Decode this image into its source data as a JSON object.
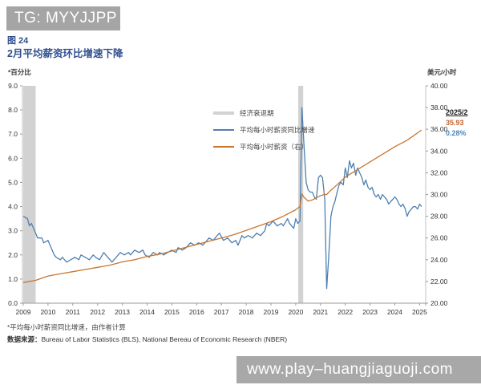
{
  "header": {
    "telegram_tag": "TG: MYYJJPP"
  },
  "figure": {
    "number": "图 24",
    "title": "2月平均薪资环比增速下降",
    "footnote": "*平均每小时薪资同比增速，由作者计算",
    "source_label": "数据来源：",
    "source_text": "Bureau of Labor Statistics (BLS), National Bereau of Economic Research (NBER)"
  },
  "annotation": {
    "date": "2025/2",
    "wage_value": "35.93",
    "growth_value": "0.28%"
  },
  "watermark": {
    "url": "www.play–huangjiaguoji.com"
  },
  "colors": {
    "title_blue": "#31508f",
    "yoy_line": "#4e80b0",
    "wage_line": "#c8762f",
    "recession_band": "#d2d2d2",
    "wage_value_text": "#c4632d",
    "growth_value_text": "#4a88bb",
    "header_bar": "#a5a5a5",
    "watermark_bar": "#a8a8a8"
  },
  "chart_data": {
    "type": "line",
    "title": "2月平均薪资环比增速下降",
    "left_axis": {
      "label": "*百分比",
      "range": [
        0,
        9
      ],
      "ticks": [
        "9.0",
        "8.0",
        "7.0",
        "6.0",
        "5.0",
        "4.0",
        "3.0",
        "2.0",
        "1.0",
        "0.0"
      ]
    },
    "right_axis": {
      "label": "美元/小时",
      "range": [
        20,
        40
      ],
      "ticks": [
        "40.00",
        "38.00",
        "36.00",
        "34.00",
        "32.00",
        "30.00",
        "28.00",
        "26.00",
        "24.00",
        "22.00",
        "20.00"
      ]
    },
    "x_ticks": [
      "2009",
      "2010",
      "2011",
      "2012",
      "2013",
      "2014",
      "2015",
      "2016",
      "2017",
      "2018",
      "2019",
      "2020",
      "2021",
      "2022",
      "2023",
      "2024",
      "2025"
    ],
    "x_range": [
      2009,
      2025.27
    ],
    "legend": [
      {
        "label": "经济衰退期",
        "color": "#d2d2d2",
        "type": "band"
      },
      {
        "label": "平均每小时薪资同比增速",
        "color": "#4e80b0",
        "type": "line",
        "axis": "left"
      },
      {
        "label": "平均每小时薪资（右）",
        "color": "#c8762f",
        "type": "line",
        "axis": "right"
      }
    ],
    "recession_bands": [
      [
        2009.0,
        2009.5
      ],
      [
        2020.1,
        2020.3
      ]
    ],
    "series": [
      {
        "name": "平均每小时薪资同比增速",
        "axis": "left",
        "color": "#4e80b0",
        "points": [
          [
            2009.0,
            3.6
          ],
          [
            2009.17,
            3.5
          ],
          [
            2009.25,
            3.2
          ],
          [
            2009.33,
            3.3
          ],
          [
            2009.5,
            2.9
          ],
          [
            2009.58,
            2.7
          ],
          [
            2009.75,
            2.7
          ],
          [
            2009.83,
            2.5
          ],
          [
            2010.0,
            2.6
          ],
          [
            2010.08,
            2.4
          ],
          [
            2010.25,
            2.0
          ],
          [
            2010.33,
            1.9
          ],
          [
            2010.5,
            1.8
          ],
          [
            2010.58,
            1.9
          ],
          [
            2010.75,
            1.7
          ],
          [
            2010.92,
            1.8
          ],
          [
            2011.08,
            1.9
          ],
          [
            2011.25,
            1.8
          ],
          [
            2011.33,
            2.0
          ],
          [
            2011.5,
            1.9
          ],
          [
            2011.67,
            1.8
          ],
          [
            2011.83,
            2.0
          ],
          [
            2011.92,
            1.9
          ],
          [
            2012.08,
            1.8
          ],
          [
            2012.25,
            2.1
          ],
          [
            2012.33,
            2.0
          ],
          [
            2012.5,
            1.8
          ],
          [
            2012.58,
            1.7
          ],
          [
            2012.75,
            1.9
          ],
          [
            2012.92,
            2.1
          ],
          [
            2013.08,
            2.0
          ],
          [
            2013.25,
            2.1
          ],
          [
            2013.33,
            2.0
          ],
          [
            2013.5,
            2.2
          ],
          [
            2013.67,
            2.1
          ],
          [
            2013.83,
            2.2
          ],
          [
            2013.92,
            2.0
          ],
          [
            2014.08,
            1.9
          ],
          [
            2014.25,
            2.1
          ],
          [
            2014.42,
            2.0
          ],
          [
            2014.5,
            2.1
          ],
          [
            2014.67,
            2.0
          ],
          [
            2014.83,
            2.1
          ],
          [
            2015.0,
            2.2
          ],
          [
            2015.17,
            2.1
          ],
          [
            2015.25,
            2.3
          ],
          [
            2015.42,
            2.2
          ],
          [
            2015.58,
            2.3
          ],
          [
            2015.75,
            2.5
          ],
          [
            2015.92,
            2.4
          ],
          [
            2016.08,
            2.5
          ],
          [
            2016.25,
            2.4
          ],
          [
            2016.42,
            2.6
          ],
          [
            2016.5,
            2.7
          ],
          [
            2016.67,
            2.6
          ],
          [
            2016.83,
            2.8
          ],
          [
            2016.92,
            2.9
          ],
          [
            2017.08,
            2.6
          ],
          [
            2017.25,
            2.7
          ],
          [
            2017.42,
            2.5
          ],
          [
            2017.58,
            2.6
          ],
          [
            2017.67,
            2.4
          ],
          [
            2017.83,
            2.8
          ],
          [
            2017.92,
            2.7
          ],
          [
            2018.08,
            2.8
          ],
          [
            2018.25,
            2.7
          ],
          [
            2018.42,
            2.9
          ],
          [
            2018.58,
            2.8
          ],
          [
            2018.75,
            3.0
          ],
          [
            2018.83,
            3.3
          ],
          [
            2018.92,
            3.2
          ],
          [
            2019.08,
            3.4
          ],
          [
            2019.25,
            3.2
          ],
          [
            2019.42,
            3.3
          ],
          [
            2019.5,
            3.2
          ],
          [
            2019.67,
            3.5
          ],
          [
            2019.75,
            3.3
          ],
          [
            2019.92,
            3.1
          ],
          [
            2020.0,
            3.5
          ],
          [
            2020.08,
            3.3
          ],
          [
            2020.17,
            3.4
          ],
          [
            2020.25,
            8.1
          ],
          [
            2020.33,
            6.6
          ],
          [
            2020.42,
            5.0
          ],
          [
            2020.5,
            4.7
          ],
          [
            2020.58,
            4.6
          ],
          [
            2020.67,
            4.6
          ],
          [
            2020.75,
            4.4
          ],
          [
            2020.83,
            4.3
          ],
          [
            2020.92,
            5.2
          ],
          [
            2021.0,
            5.3
          ],
          [
            2021.08,
            5.2
          ],
          [
            2021.17,
            4.3
          ],
          [
            2021.25,
            0.6
          ],
          [
            2021.33,
            1.9
          ],
          [
            2021.42,
            3.6
          ],
          [
            2021.5,
            4.0
          ],
          [
            2021.58,
            4.2
          ],
          [
            2021.67,
            4.6
          ],
          [
            2021.75,
            4.9
          ],
          [
            2021.83,
            5.0
          ],
          [
            2021.92,
            4.9
          ],
          [
            2022.0,
            5.6
          ],
          [
            2022.08,
            5.2
          ],
          [
            2022.17,
            5.9
          ],
          [
            2022.25,
            5.6
          ],
          [
            2022.33,
            5.8
          ],
          [
            2022.42,
            5.3
          ],
          [
            2022.5,
            5.6
          ],
          [
            2022.58,
            5.4
          ],
          [
            2022.67,
            5.2
          ],
          [
            2022.75,
            4.9
          ],
          [
            2022.83,
            5.1
          ],
          [
            2022.92,
            4.8
          ],
          [
            2023.0,
            4.7
          ],
          [
            2023.08,
            4.8
          ],
          [
            2023.17,
            4.5
          ],
          [
            2023.25,
            4.4
          ],
          [
            2023.33,
            4.5
          ],
          [
            2023.42,
            4.3
          ],
          [
            2023.5,
            4.5
          ],
          [
            2023.58,
            4.4
          ],
          [
            2023.67,
            4.3
          ],
          [
            2023.75,
            4.1
          ],
          [
            2023.83,
            4.2
          ],
          [
            2023.92,
            4.3
          ],
          [
            2024.0,
            4.4
          ],
          [
            2024.08,
            4.3
          ],
          [
            2024.17,
            4.1
          ],
          [
            2024.25,
            4.0
          ],
          [
            2024.33,
            4.1
          ],
          [
            2024.42,
            3.9
          ],
          [
            2024.5,
            3.6
          ],
          [
            2024.58,
            3.8
          ],
          [
            2024.67,
            3.9
          ],
          [
            2024.75,
            4.0
          ],
          [
            2024.83,
            4.0
          ],
          [
            2024.92,
            3.9
          ],
          [
            2025.0,
            4.1
          ],
          [
            2025.08,
            4.0
          ]
        ]
      },
      {
        "name": "平均每小时薪资（右）",
        "axis": "right",
        "color": "#c8762f",
        "points": [
          [
            2009.0,
            21.9
          ],
          [
            2009.5,
            22.1
          ],
          [
            2010.0,
            22.5
          ],
          [
            2010.5,
            22.7
          ],
          [
            2011.0,
            22.9
          ],
          [
            2011.5,
            23.1
          ],
          [
            2012.0,
            23.3
          ],
          [
            2012.5,
            23.5
          ],
          [
            2013.0,
            23.8
          ],
          [
            2013.5,
            24.0
          ],
          [
            2014.0,
            24.3
          ],
          [
            2014.5,
            24.5
          ],
          [
            2015.0,
            24.8
          ],
          [
            2015.5,
            25.1
          ],
          [
            2016.0,
            25.4
          ],
          [
            2016.5,
            25.7
          ],
          [
            2017.0,
            26.0
          ],
          [
            2017.5,
            26.3
          ],
          [
            2018.0,
            26.7
          ],
          [
            2018.5,
            27.1
          ],
          [
            2019.0,
            27.5
          ],
          [
            2019.5,
            28.0
          ],
          [
            2020.0,
            28.6
          ],
          [
            2020.17,
            28.9
          ],
          [
            2020.25,
            30.05
          ],
          [
            2020.33,
            29.75
          ],
          [
            2020.5,
            29.4
          ],
          [
            2020.67,
            29.5
          ],
          [
            2020.83,
            29.7
          ],
          [
            2021.0,
            29.9
          ],
          [
            2021.17,
            30.0
          ],
          [
            2021.25,
            30.0
          ],
          [
            2021.42,
            30.4
          ],
          [
            2021.67,
            30.9
          ],
          [
            2022.0,
            31.6
          ],
          [
            2022.5,
            32.3
          ],
          [
            2023.0,
            33.0
          ],
          [
            2023.5,
            33.7
          ],
          [
            2024.0,
            34.4
          ],
          [
            2024.5,
            35.0
          ],
          [
            2025.0,
            35.8
          ],
          [
            2025.08,
            35.93
          ]
        ]
      }
    ],
    "last_point": {
      "date": "2025/2",
      "wage": 35.93,
      "mom_growth_pct": 0.28,
      "yoy_growth_pct": 4.0
    }
  }
}
